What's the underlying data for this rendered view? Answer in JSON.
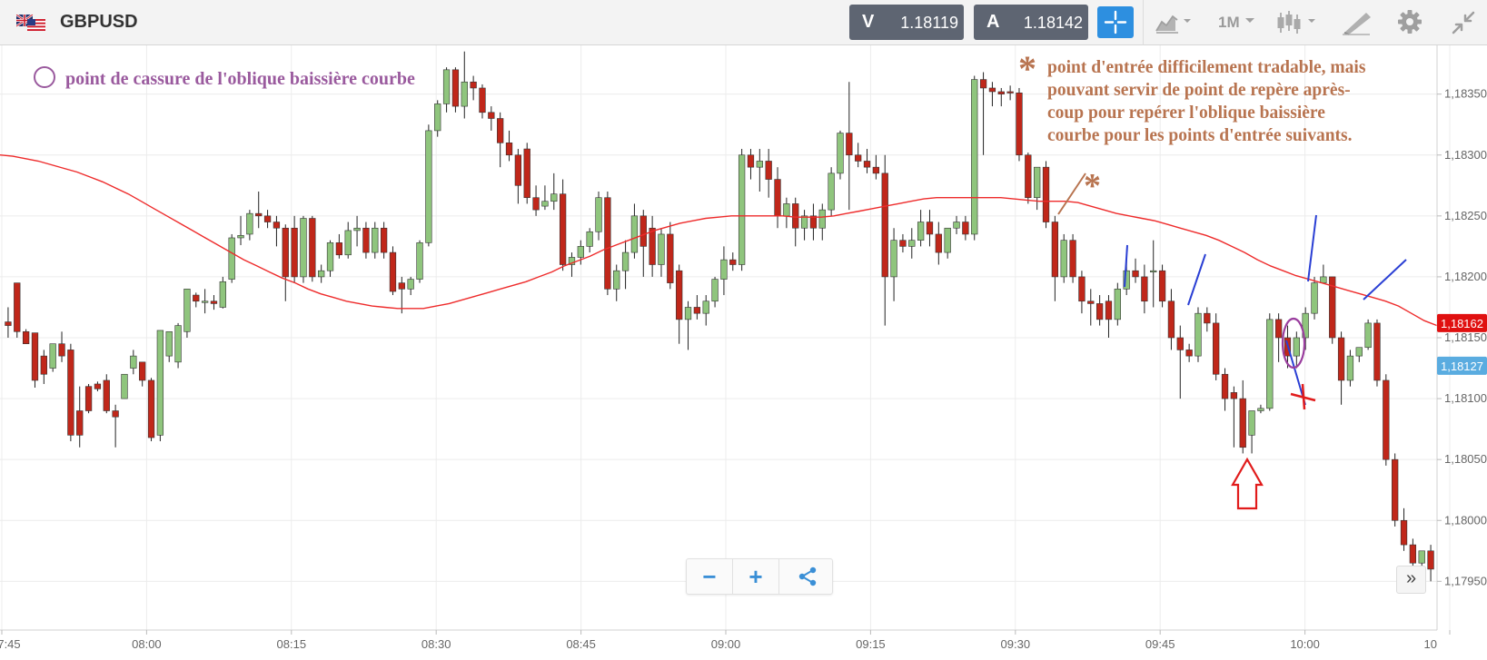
{
  "toolbar": {
    "symbol": "GBPUSD",
    "sell": {
      "label": "V",
      "price": "1.18119"
    },
    "buy": {
      "label": "A",
      "price": "1.18142"
    },
    "timeframe": "1M"
  },
  "annotations": {
    "circle_note": "point de cassure de l'oblique baissière courbe",
    "star_note_lines": [
      "point d'entrée difficilement tradable, mais",
      "pouvant servir de point de repère après-",
      "coup pour repérer l'oblique baissière",
      "courbe pour les points d'entrée suivants."
    ]
  },
  "zoom": {
    "minus": "−",
    "plus": "+"
  },
  "scroll_right": "»",
  "chart_data": {
    "type": "candlestick",
    "instrument": "GBPUSD",
    "interval": "1M",
    "y_ticks": [
      "1,18350",
      "1,18300",
      "1,18250",
      "1,18200",
      "1,18150",
      "1,18100",
      "1,18050",
      "1,18000",
      "1,17950"
    ],
    "y_tick_values": [
      1.1835,
      1.183,
      1.1825,
      1.182,
      1.1815,
      1.181,
      1.1805,
      1.18,
      1.1795
    ],
    "ylim": [
      1.1791,
      1.1839
    ],
    "x_ticks": [
      "7:45",
      "08:00",
      "08:15",
      "08:30",
      "08:45",
      "09:00",
      "09:15",
      "09:30",
      "09:45",
      "10:00",
      "10"
    ],
    "current_price_labels": [
      {
        "value": "1,18162",
        "color": "#e01010"
      },
      {
        "value": "1,18127",
        "color": "#5aace0"
      }
    ],
    "colors": {
      "up": "#8fc57d",
      "down": "#c0271a",
      "wick": "#222222",
      "ma": "#ee2b2b",
      "grid": "#ececec"
    },
    "candles": [
      [
        1.18163,
        1.18175,
        1.1816,
        1.1815
      ],
      [
        1.18195,
        1.18195,
        1.18155,
        1.1815
      ],
      [
        1.18155,
        1.18157,
        1.18145,
        1.18154
      ],
      [
        1.18154,
        1.18152,
        1.18115,
        1.18109
      ],
      [
        1.18135,
        1.1814,
        1.1812,
        1.18112
      ],
      [
        1.18125,
        1.18145,
        1.18145,
        1.18122
      ],
      [
        1.18145,
        1.18155,
        1.18135,
        1.1813
      ],
      [
        1.1814,
        1.18145,
        1.1807,
        1.18065
      ],
      [
        1.1809,
        1.1811,
        1.1807,
        1.1806
      ],
      [
        1.1811,
        1.18112,
        1.1809,
        1.18088
      ],
      [
        1.18112,
        1.18114,
        1.18108,
        1.18106
      ],
      [
        1.18115,
        1.1812,
        1.1809,
        1.18088
      ],
      [
        1.1809,
        1.18095,
        1.18085,
        1.1806
      ],
      [
        1.181,
        1.18115,
        1.1812,
        1.181
      ],
      [
        1.18125,
        1.1814,
        1.18135,
        1.1812
      ],
      [
        1.1813,
        1.1813,
        1.18115,
        1.1811
      ],
      [
        1.18115,
        1.18117,
        1.18068,
        1.18065
      ],
      [
        1.1807,
        1.18156,
        1.18156,
        1.18065
      ],
      [
        1.18135,
        1.18155,
        1.18155,
        1.1813
      ],
      [
        1.1813,
        1.18162,
        1.1816,
        1.18125
      ],
      [
        1.18155,
        1.1819,
        1.1819,
        1.1815
      ],
      [
        1.18185,
        1.18187,
        1.1818,
        1.18175
      ],
      [
        1.1818,
        1.1819,
        1.1818,
        1.1817
      ],
      [
        1.1818,
        1.18185,
        1.18178,
        1.18173
      ],
      [
        1.18175,
        1.182,
        1.18196,
        1.18174
      ],
      [
        1.18198,
        1.18235,
        1.18232,
        1.18195
      ],
      [
        1.18232,
        1.1825,
        1.18234,
        1.18226
      ],
      [
        1.18235,
        1.18255,
        1.18252,
        1.1823
      ],
      [
        1.18252,
        1.1827,
        1.1825,
        1.1824
      ],
      [
        1.1825,
        1.18255,
        1.18245,
        1.1824
      ],
      [
        1.18245,
        1.1825,
        1.1824,
        1.18225
      ],
      [
        1.1824,
        1.18243,
        1.182,
        1.1818
      ],
      [
        1.1824,
        1.1825,
        1.182,
        1.18195
      ],
      [
        1.182,
        1.1825,
        1.18248,
        1.18195
      ],
      [
        1.18248,
        1.1825,
        1.182,
        1.18196
      ],
      [
        1.182,
        1.1821,
        1.18205,
        1.18195
      ],
      [
        1.18205,
        1.1823,
        1.18228,
        1.182
      ],
      [
        1.18228,
        1.18235,
        1.18218,
        1.18215
      ],
      [
        1.18218,
        1.18245,
        1.18238,
        1.18215
      ],
      [
        1.18238,
        1.1825,
        1.1824,
        1.18225
      ],
      [
        1.1824,
        1.18245,
        1.1822,
        1.18215
      ],
      [
        1.1822,
        1.18245,
        1.1824,
        1.18215
      ],
      [
        1.1824,
        1.18245,
        1.1822,
        1.18215
      ],
      [
        1.1822,
        1.18225,
        1.18188,
        1.18185
      ],
      [
        1.18195,
        1.182,
        1.1819,
        1.1817
      ],
      [
        1.1819,
        1.182,
        1.18198,
        1.18185
      ],
      [
        1.18198,
        1.1823,
        1.18228,
        1.18195
      ],
      [
        1.18228,
        1.18325,
        1.1832,
        1.18225
      ],
      [
        1.1832,
        1.18345,
        1.18342,
        1.18315
      ],
      [
        1.18342,
        1.18372,
        1.1837,
        1.18335
      ],
      [
        1.1837,
        1.18372,
        1.1834,
        1.18335
      ],
      [
        1.1834,
        1.18385,
        1.1836,
        1.1833
      ],
      [
        1.1836,
        1.18365,
        1.18355,
        1.18345
      ],
      [
        1.18355,
        1.18358,
        1.18335,
        1.1833
      ],
      [
        1.18335,
        1.1834,
        1.1833,
        1.1832
      ],
      [
        1.1833,
        1.18335,
        1.1831,
        1.1829
      ],
      [
        1.1831,
        1.1832,
        1.183,
        1.18295
      ],
      [
        1.183,
        1.18305,
        1.18275,
        1.1826
      ],
      [
        1.18305,
        1.1831,
        1.18265,
        1.1826
      ],
      [
        1.18265,
        1.18275,
        1.18255,
        1.1825
      ],
      [
        1.18258,
        1.18275,
        1.18262,
        1.18255
      ],
      [
        1.18262,
        1.18285,
        1.18268,
        1.18255
      ],
      [
        1.18268,
        1.1828,
        1.1821,
        1.18205
      ],
      [
        1.1821,
        1.1822,
        1.18216,
        1.182
      ],
      [
        1.18216,
        1.1823,
        1.18225,
        1.1821
      ],
      [
        1.18225,
        1.1824,
        1.18237,
        1.1822
      ],
      [
        1.18237,
        1.1827,
        1.18265,
        1.1823
      ],
      [
        1.18265,
        1.1827,
        1.1819,
        1.18185
      ],
      [
        1.1819,
        1.1821,
        1.18205,
        1.1818
      ],
      [
        1.18205,
        1.1823,
        1.1822,
        1.1819
      ],
      [
        1.1822,
        1.1826,
        1.1825,
        1.18215
      ],
      [
        1.1825,
        1.18255,
        1.18225,
        1.182
      ],
      [
        1.1824,
        1.1825,
        1.1821,
        1.182
      ],
      [
        1.1821,
        1.1824,
        1.18235,
        1.182
      ],
      [
        1.18235,
        1.18245,
        1.18195,
        1.1819
      ],
      [
        1.18205,
        1.1821,
        1.18165,
        1.18145
      ],
      [
        1.18165,
        1.1818,
        1.18175,
        1.1814
      ],
      [
        1.18175,
        1.18185,
        1.1817,
        1.18165
      ],
      [
        1.1817,
        1.18185,
        1.1818,
        1.1816
      ],
      [
        1.1818,
        1.182,
        1.18198,
        1.18175
      ],
      [
        1.18198,
        1.18225,
        1.18214,
        1.18185
      ],
      [
        1.18214,
        1.1822,
        1.1821,
        1.18205
      ],
      [
        1.1821,
        1.18305,
        1.183,
        1.18205
      ],
      [
        1.183,
        1.18305,
        1.1829,
        1.1828
      ],
      [
        1.1829,
        1.18305,
        1.18295,
        1.1827
      ],
      [
        1.18295,
        1.18305,
        1.1828,
        1.18265
      ],
      [
        1.1828,
        1.1829,
        1.1825,
        1.1824
      ],
      [
        1.1825,
        1.18265,
        1.1826,
        1.1824
      ],
      [
        1.1826,
        1.18265,
        1.1824,
        1.18225
      ],
      [
        1.1824,
        1.18255,
        1.1825,
        1.1823
      ],
      [
        1.1825,
        1.1826,
        1.1824,
        1.1823
      ],
      [
        1.1824,
        1.1826,
        1.18255,
        1.1823
      ],
      [
        1.18255,
        1.1829,
        1.18285,
        1.1825
      ],
      [
        1.18285,
        1.1832,
        1.18318,
        1.1828
      ],
      [
        1.18318,
        1.1836,
        1.183,
        1.18255
      ],
      [
        1.183,
        1.1831,
        1.18295,
        1.1829
      ],
      [
        1.18295,
        1.18305,
        1.1829,
        1.18285
      ],
      [
        1.1829,
        1.183,
        1.18285,
        1.1828
      ],
      [
        1.18285,
        1.183,
        1.182,
        1.1816
      ],
      [
        1.182,
        1.1824,
        1.1823,
        1.1818
      ],
      [
        1.1823,
        1.18235,
        1.18225,
        1.1822
      ],
      [
        1.18225,
        1.1824,
        1.1823,
        1.18215
      ],
      [
        1.1823,
        1.18255,
        1.18245,
        1.18225
      ],
      [
        1.18245,
        1.18255,
        1.18235,
        1.18225
      ],
      [
        1.18235,
        1.18245,
        1.1822,
        1.1821
      ],
      [
        1.1822,
        1.1824,
        1.1824,
        1.18215
      ],
      [
        1.1824,
        1.1825,
        1.18245,
        1.18235
      ],
      [
        1.18245,
        1.1825,
        1.18235,
        1.1823
      ],
      [
        1.18235,
        1.18365,
        1.18362,
        1.1823
      ],
      [
        1.18362,
        1.18368,
        1.18355,
        1.183
      ],
      [
        1.18355,
        1.1836,
        1.18352,
        1.1834
      ],
      [
        1.18352,
        1.18355,
        1.1835,
        1.1834
      ],
      [
        1.18352,
        1.18357,
        1.18351,
        1.18345
      ],
      [
        1.18351,
        1.18355,
        1.183,
        1.18295
      ],
      [
        1.183,
        1.18302,
        1.18265,
        1.1826
      ],
      [
        1.18265,
        1.1829,
        1.1829,
        1.18255
      ],
      [
        1.1829,
        1.18295,
        1.18245,
        1.1824
      ],
      [
        1.18245,
        1.1825,
        1.182,
        1.1818
      ],
      [
        1.182,
        1.18235,
        1.1823,
        1.18195
      ],
      [
        1.1823,
        1.18235,
        1.182,
        1.18195
      ],
      [
        1.182,
        1.18205,
        1.1818,
        1.1817
      ],
      [
        1.1818,
        1.1819,
        1.18178,
        1.1816
      ],
      [
        1.18178,
        1.18185,
        1.18165,
        1.1816
      ],
      [
        1.1818,
        1.18185,
        1.18165,
        1.1815
      ],
      [
        1.18165,
        1.18195,
        1.1819,
        1.1816
      ],
      [
        1.1819,
        1.18215,
        1.18205,
        1.18185
      ],
      [
        1.18205,
        1.18215,
        1.182,
        1.18195
      ],
      [
        1.182,
        1.1821,
        1.1818,
        1.1817
      ],
      [
        1.18205,
        1.1823,
        1.18205,
        1.18175
      ],
      [
        1.18205,
        1.1821,
        1.1818,
        1.18175
      ],
      [
        1.1818,
        1.1819,
        1.1815,
        1.1814
      ],
      [
        1.1815,
        1.1816,
        1.1814,
        1.181
      ],
      [
        1.1814,
        1.18145,
        1.18135,
        1.1813
      ],
      [
        1.18135,
        1.18175,
        1.1817,
        1.1813
      ],
      [
        1.1817,
        1.18175,
        1.18162,
        1.18155
      ],
      [
        1.18162,
        1.1817,
        1.1812,
        1.18115
      ],
      [
        1.1812,
        1.18125,
        1.181,
        1.1809
      ],
      [
        1.18105,
        1.1811,
        1.181,
        1.1806
      ],
      [
        1.181,
        1.18115,
        1.1806,
        1.18055
      ],
      [
        1.1807,
        1.1809,
        1.1809,
        1.18055
      ],
      [
        1.1809,
        1.18095,
        1.18092,
        1.18088
      ],
      [
        1.18092,
        1.1817,
        1.18165,
        1.1809
      ],
      [
        1.18165,
        1.1817,
        1.1815,
        1.1813
      ],
      [
        1.1815,
        1.1816,
        1.18135,
        1.18125
      ],
      [
        1.18135,
        1.18155,
        1.1815,
        1.18125
      ],
      [
        1.1815,
        1.18175,
        1.1817,
        1.1814
      ],
      [
        1.1817,
        1.182,
        1.18195,
        1.18165
      ],
      [
        1.18195,
        1.1821,
        1.182,
        1.18195
      ],
      [
        1.182,
        1.182,
        1.1815,
        1.18145
      ],
      [
        1.1815,
        1.18155,
        1.18115,
        1.18095
      ],
      [
        1.18115,
        1.1814,
        1.18135,
        1.1811
      ],
      [
        1.18135,
        1.1814,
        1.18142,
        1.1813
      ],
      [
        1.18142,
        1.18165,
        1.18162,
        1.1814
      ],
      [
        1.18162,
        1.18165,
        1.18115,
        1.1811
      ],
      [
        1.18115,
        1.1812,
        1.1805,
        1.18045
      ],
      [
        1.1805,
        1.18055,
        1.18,
        1.17995
      ],
      [
        1.18,
        1.1801,
        1.1798,
        1.17975
      ],
      [
        1.1798,
        1.17985,
        1.17965,
        1.17955
      ],
      [
        1.17965,
        1.17975,
        1.17975,
        1.17955
      ],
      [
        1.17975,
        1.1798,
        1.1796,
        1.1795
      ]
    ],
    "moving_average": [
      1.183,
      1.18299,
      1.18297,
      1.18295,
      1.18292,
      1.18289,
      1.18286,
      1.18282,
      1.18278,
      1.18273,
      1.18268,
      1.18262,
      1.18256,
      1.1825,
      1.18244,
      1.18238,
      1.18232,
      1.18226,
      1.1822,
      1.18214,
      1.18209,
      1.18204,
      1.18199,
      1.18195,
      1.1819,
      1.18186,
      1.18183,
      1.1818,
      1.18178,
      1.18176,
      1.18175,
      1.18174,
      1.18174,
      1.18174,
      1.18176,
      1.18178,
      1.18181,
      1.18184,
      1.18187,
      1.1819,
      1.18193,
      1.18196,
      1.182,
      1.18204,
      1.18209,
      1.18213,
      1.18217,
      1.18222,
      1.18226,
      1.1823,
      1.18234,
      1.18238,
      1.18241,
      1.18244,
      1.18246,
      1.18248,
      1.18249,
      1.1825,
      1.1825,
      1.1825,
      1.1825,
      1.1825,
      1.18249,
      1.18249,
      1.18249,
      1.1825,
      1.18252,
      1.18254,
      1.18256,
      1.18258,
      1.1826,
      1.18262,
      1.18264,
      1.18265,
      1.18265,
      1.18265,
      1.18265,
      1.18265,
      1.18265,
      1.18264,
      1.18263,
      1.18262,
      1.18262,
      1.18262,
      1.18261,
      1.18258,
      1.18255,
      1.18252,
      1.1825,
      1.18248,
      1.18246,
      1.18243,
      1.1824,
      1.18237,
      1.18234,
      1.1823,
      1.18225,
      1.1822,
      1.18214,
      1.18209,
      1.18205,
      1.18201,
      1.18198,
      1.18195,
      1.18192,
      1.18189,
      1.18186,
      1.18183,
      1.1818,
      1.18176,
      1.1817,
      1.18164,
      1.1816
    ]
  }
}
